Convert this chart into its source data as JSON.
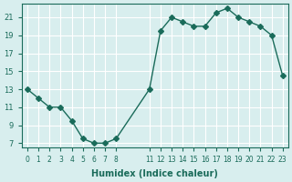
{
  "x": [
    0,
    1,
    2,
    3,
    4,
    5,
    6,
    7,
    8,
    11,
    12,
    13,
    14,
    15,
    16,
    17,
    18,
    19,
    20,
    21,
    22,
    23
  ],
  "y": [
    13,
    12,
    11,
    11,
    9.5,
    7.5,
    7,
    7,
    7.5,
    13,
    19.5,
    21,
    20.5,
    20,
    20,
    21.5,
    22,
    21,
    20.5,
    20,
    19,
    14.5
  ],
  "line_color": "#1a6b5a",
  "marker": "D",
  "marker_size": 3,
  "bg_color": "#d8eeee",
  "grid_color": "#ffffff",
  "xlabel": "Humidex (Indice chaleur)",
  "yticks": [
    7,
    9,
    11,
    13,
    15,
    17,
    19,
    21
  ],
  "xtick_positions": [
    0,
    1,
    2,
    3,
    4,
    5,
    6,
    7,
    8,
    11,
    12,
    13,
    14,
    15,
    16,
    17,
    18,
    19,
    20,
    21,
    22,
    23
  ],
  "xtick_labels": [
    "0",
    "1",
    "2",
    "3",
    "4",
    "5",
    "6",
    "7",
    "8",
    "11",
    "12",
    "13",
    "14",
    "15",
    "16",
    "17",
    "18",
    "19",
    "20",
    "21",
    "22",
    "23"
  ],
  "xlim": [
    -0.5,
    23.5
  ],
  "ylim": [
    6.5,
    22.5
  ]
}
